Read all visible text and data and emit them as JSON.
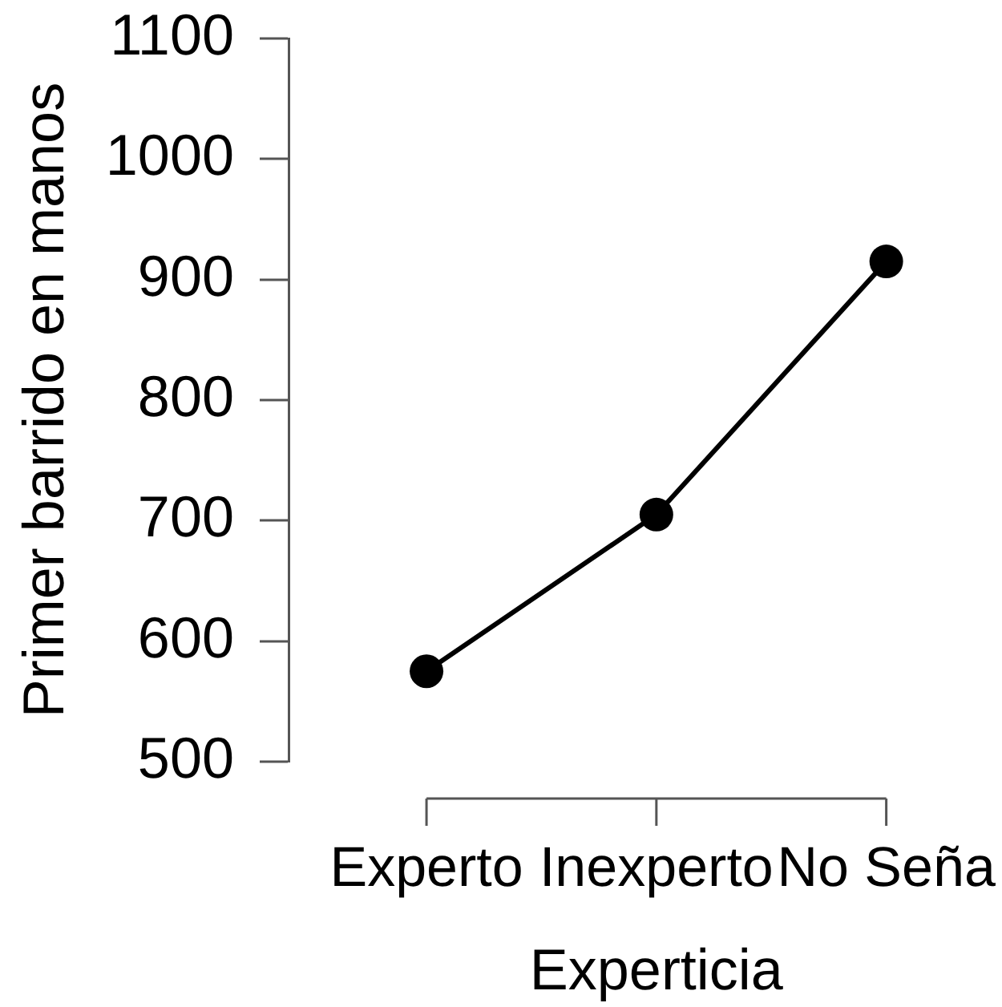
{
  "chart_data": {
    "type": "line",
    "xlabel": "Experticia",
    "ylabel": "Primer barrido en manos",
    "categories": [
      "Experto",
      "Inexperto",
      "No Seña"
    ],
    "values": [
      575,
      705,
      915
    ],
    "color": "#000000",
    "ylim": [
      500,
      1100
    ],
    "yticks": [
      500,
      600,
      700,
      800,
      900,
      1000,
      1100
    ],
    "marker": "circle",
    "line_style": "solid"
  }
}
